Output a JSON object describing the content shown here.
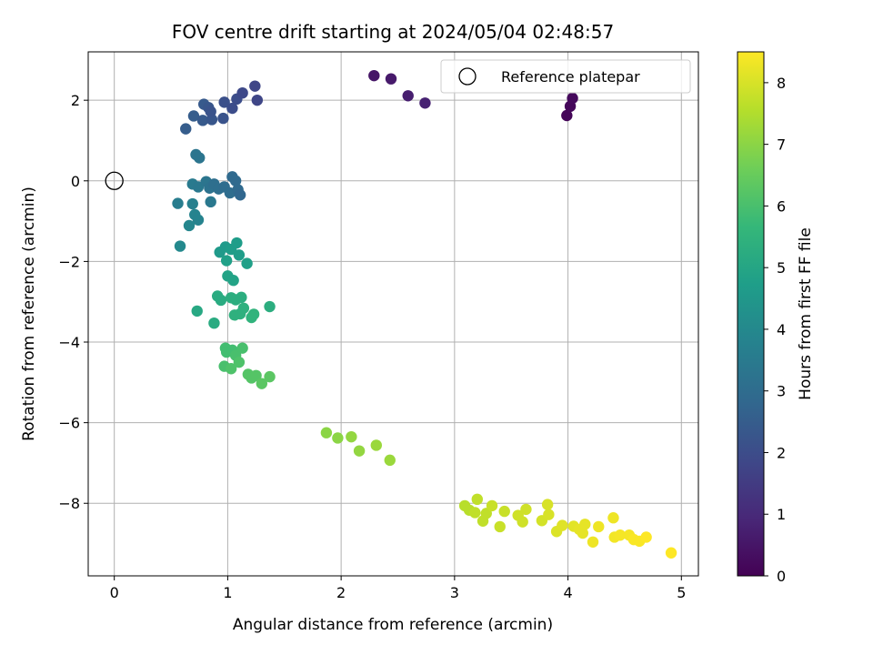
{
  "chart_data": {
    "type": "scatter",
    "title": "FOV centre drift starting at 2024/05/04 02:48:57",
    "xlabel": "Angular distance from reference (arcmin)",
    "ylabel": "Rotation from reference (arcmin)",
    "xlim": [
      -0.23,
      5.15
    ],
    "ylim": [
      -9.8,
      3.2
    ],
    "xticks": [
      0,
      1,
      2,
      3,
      4,
      5
    ],
    "yticks": [
      2,
      0,
      -2,
      -4,
      -6,
      -8
    ],
    "grid": true,
    "legend": {
      "position": "top-right",
      "entries": [
        "Reference platepar"
      ]
    },
    "reference_point": {
      "x": 0,
      "y": 0,
      "label": "Reference platepar"
    },
    "colorbar": {
      "label": "Hours from first FF file",
      "min": 0,
      "max": 8.5,
      "ticks": [
        0,
        1,
        2,
        3,
        4,
        5,
        6,
        7,
        8
      ],
      "colormap": "viridis",
      "stops": [
        "#440154",
        "#482878",
        "#3e4989",
        "#31688e",
        "#26828e",
        "#1f9e89",
        "#35b779",
        "#6ece58",
        "#b5de2b",
        "#fde725"
      ]
    },
    "points": [
      {
        "x": 2.29,
        "y": 2.61,
        "c": 0.5
      },
      {
        "x": 2.44,
        "y": 2.53,
        "c": 0.6
      },
      {
        "x": 2.59,
        "y": 2.11,
        "c": 0.7
      },
      {
        "x": 2.74,
        "y": 1.93,
        "c": 0.8
      },
      {
        "x": 3.99,
        "y": 1.62,
        "c": 0.1
      },
      {
        "x": 4.02,
        "y": 1.85,
        "c": 0.15
      },
      {
        "x": 4.04,
        "y": 2.05,
        "c": 0.2
      },
      {
        "x": 0.63,
        "y": 1.29,
        "c": 2.5
      },
      {
        "x": 0.7,
        "y": 1.61,
        "c": 2.5
      },
      {
        "x": 0.79,
        "y": 1.9,
        "c": 2.4
      },
      {
        "x": 0.83,
        "y": 1.82,
        "c": 2.3
      },
      {
        "x": 0.78,
        "y": 1.5,
        "c": 2.4
      },
      {
        "x": 0.86,
        "y": 1.52,
        "c": 2.3
      },
      {
        "x": 0.85,
        "y": 1.72,
        "c": 2.2
      },
      {
        "x": 0.96,
        "y": 1.55,
        "c": 2.2
      },
      {
        "x": 0.97,
        "y": 1.95,
        "c": 2.1
      },
      {
        "x": 1.04,
        "y": 1.8,
        "c": 2.0
      },
      {
        "x": 1.08,
        "y": 2.03,
        "c": 2.0
      },
      {
        "x": 1.13,
        "y": 2.18,
        "c": 1.9
      },
      {
        "x": 1.24,
        "y": 2.35,
        "c": 1.8
      },
      {
        "x": 1.26,
        "y": 2.0,
        "c": 1.8
      },
      {
        "x": 0.72,
        "y": 0.65,
        "c": 3.3
      },
      {
        "x": 0.75,
        "y": 0.57,
        "c": 3.3
      },
      {
        "x": 0.69,
        "y": -0.08,
        "c": 3.5
      },
      {
        "x": 0.74,
        "y": -0.15,
        "c": 3.4
      },
      {
        "x": 0.81,
        "y": -0.02,
        "c": 3.3
      },
      {
        "x": 0.84,
        "y": -0.18,
        "c": 3.2
      },
      {
        "x": 0.88,
        "y": -0.08,
        "c": 3.1
      },
      {
        "x": 0.92,
        "y": -0.2,
        "c": 3.1
      },
      {
        "x": 0.97,
        "y": -0.15,
        "c": 3.0
      },
      {
        "x": 1.02,
        "y": -0.3,
        "c": 3.0
      },
      {
        "x": 1.04,
        "y": 0.1,
        "c": 2.9
      },
      {
        "x": 1.07,
        "y": 0.0,
        "c": 2.9
      },
      {
        "x": 1.09,
        "y": -0.22,
        "c": 2.9
      },
      {
        "x": 1.11,
        "y": -0.35,
        "c": 2.8
      },
      {
        "x": 0.85,
        "y": -0.52,
        "c": 3.4
      },
      {
        "x": 0.56,
        "y": -0.56,
        "c": 3.6
      },
      {
        "x": 0.69,
        "y": -0.57,
        "c": 3.7
      },
      {
        "x": 0.71,
        "y": -0.84,
        "c": 3.8
      },
      {
        "x": 0.74,
        "y": -0.97,
        "c": 3.8
      },
      {
        "x": 0.66,
        "y": -1.11,
        "c": 3.9
      },
      {
        "x": 0.58,
        "y": -1.62,
        "c": 4.0
      },
      {
        "x": 0.93,
        "y": -1.77,
        "c": 4.6
      },
      {
        "x": 0.98,
        "y": -1.64,
        "c": 4.6
      },
      {
        "x": 1.03,
        "y": -1.7,
        "c": 4.7
      },
      {
        "x": 1.08,
        "y": -1.54,
        "c": 4.7
      },
      {
        "x": 1.1,
        "y": -1.84,
        "c": 4.7
      },
      {
        "x": 1.17,
        "y": -2.05,
        "c": 4.8
      },
      {
        "x": 0.99,
        "y": -1.98,
        "c": 4.8
      },
      {
        "x": 1.0,
        "y": -2.36,
        "c": 4.9
      },
      {
        "x": 1.05,
        "y": -2.47,
        "c": 4.9
      },
      {
        "x": 0.91,
        "y": -2.86,
        "c": 5.2
      },
      {
        "x": 0.94,
        "y": -2.96,
        "c": 5.2
      },
      {
        "x": 1.03,
        "y": -2.9,
        "c": 5.3
      },
      {
        "x": 1.07,
        "y": -2.95,
        "c": 5.3
      },
      {
        "x": 1.12,
        "y": -2.89,
        "c": 5.3
      },
      {
        "x": 1.14,
        "y": -3.16,
        "c": 5.4
      },
      {
        "x": 1.06,
        "y": -3.33,
        "c": 5.4
      },
      {
        "x": 1.11,
        "y": -3.3,
        "c": 5.4
      },
      {
        "x": 1.21,
        "y": -3.39,
        "c": 5.5
      },
      {
        "x": 1.23,
        "y": -3.31,
        "c": 5.5
      },
      {
        "x": 1.37,
        "y": -3.12,
        "c": 5.3
      },
      {
        "x": 0.73,
        "y": -3.23,
        "c": 5.1
      },
      {
        "x": 0.88,
        "y": -3.53,
        "c": 5.2
      },
      {
        "x": 0.98,
        "y": -4.15,
        "c": 5.9
      },
      {
        "x": 0.99,
        "y": -4.25,
        "c": 5.9
      },
      {
        "x": 1.04,
        "y": -4.2,
        "c": 5.9
      },
      {
        "x": 1.07,
        "y": -4.33,
        "c": 6.0
      },
      {
        "x": 1.13,
        "y": -4.15,
        "c": 6.0
      },
      {
        "x": 0.97,
        "y": -4.6,
        "c": 6.0
      },
      {
        "x": 1.03,
        "y": -4.66,
        "c": 6.1
      },
      {
        "x": 1.1,
        "y": -4.5,
        "c": 6.1
      },
      {
        "x": 1.18,
        "y": -4.8,
        "c": 6.2
      },
      {
        "x": 1.21,
        "y": -4.89,
        "c": 6.2
      },
      {
        "x": 1.25,
        "y": -4.83,
        "c": 6.2
      },
      {
        "x": 1.3,
        "y": -5.03,
        "c": 6.3
      },
      {
        "x": 1.37,
        "y": -4.86,
        "c": 6.3
      },
      {
        "x": 1.87,
        "y": -6.25,
        "c": 7.0
      },
      {
        "x": 1.97,
        "y": -6.38,
        "c": 7.0
      },
      {
        "x": 2.09,
        "y": -6.35,
        "c": 7.1
      },
      {
        "x": 2.16,
        "y": -6.7,
        "c": 7.1
      },
      {
        "x": 2.31,
        "y": -6.56,
        "c": 7.2
      },
      {
        "x": 2.43,
        "y": -6.93,
        "c": 7.2
      },
      {
        "x": 3.09,
        "y": -8.06,
        "c": 7.6
      },
      {
        "x": 3.13,
        "y": -8.17,
        "c": 7.6
      },
      {
        "x": 3.18,
        "y": -8.23,
        "c": 7.7
      },
      {
        "x": 3.2,
        "y": -7.9,
        "c": 7.7
      },
      {
        "x": 3.25,
        "y": -8.44,
        "c": 7.7
      },
      {
        "x": 3.28,
        "y": -8.25,
        "c": 7.7
      },
      {
        "x": 3.33,
        "y": -8.06,
        "c": 7.8
      },
      {
        "x": 3.4,
        "y": -8.58,
        "c": 7.8
      },
      {
        "x": 3.44,
        "y": -8.2,
        "c": 7.8
      },
      {
        "x": 3.56,
        "y": -8.3,
        "c": 7.9
      },
      {
        "x": 3.6,
        "y": -8.46,
        "c": 7.9
      },
      {
        "x": 3.63,
        "y": -8.15,
        "c": 7.9
      },
      {
        "x": 3.77,
        "y": -8.43,
        "c": 7.95
      },
      {
        "x": 3.82,
        "y": -8.03,
        "c": 8.0
      },
      {
        "x": 3.83,
        "y": -8.28,
        "c": 8.0
      },
      {
        "x": 3.9,
        "y": -8.7,
        "c": 8.05
      },
      {
        "x": 3.95,
        "y": -8.55,
        "c": 8.1
      },
      {
        "x": 4.05,
        "y": -8.57,
        "c": 8.15
      },
      {
        "x": 4.1,
        "y": -8.65,
        "c": 8.2
      },
      {
        "x": 4.13,
        "y": -8.74,
        "c": 8.2
      },
      {
        "x": 4.15,
        "y": -8.52,
        "c": 8.2
      },
      {
        "x": 4.22,
        "y": -8.96,
        "c": 8.3
      },
      {
        "x": 4.27,
        "y": -8.58,
        "c": 8.3
      },
      {
        "x": 4.4,
        "y": -8.36,
        "c": 8.3
      },
      {
        "x": 4.41,
        "y": -8.84,
        "c": 8.35
      },
      {
        "x": 4.46,
        "y": -8.79,
        "c": 8.4
      },
      {
        "x": 4.54,
        "y": -8.79,
        "c": 8.4
      },
      {
        "x": 4.58,
        "y": -8.9,
        "c": 8.45
      },
      {
        "x": 4.63,
        "y": -8.94,
        "c": 8.45
      },
      {
        "x": 4.69,
        "y": -8.84,
        "c": 8.5
      },
      {
        "x": 4.91,
        "y": -9.23,
        "c": 8.5
      }
    ]
  }
}
